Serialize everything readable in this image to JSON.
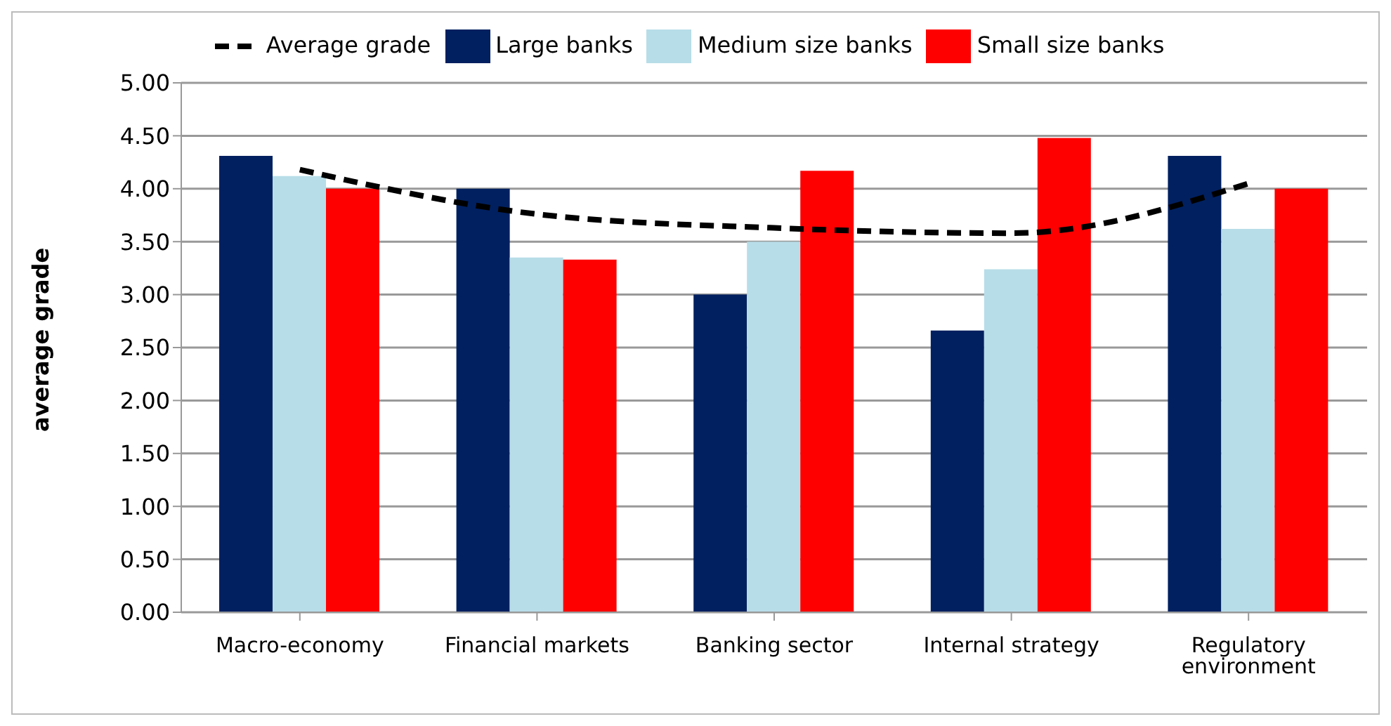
{
  "chart_data": {
    "type": "bar",
    "categories": [
      "Macro-economy",
      "Financial markets",
      "Banking sector",
      "Internal strategy",
      "Regulatory environment"
    ],
    "series": [
      {
        "name": "Large banks",
        "color": "#002060",
        "values": [
          4.31,
          4.0,
          3.0,
          2.66,
          4.31
        ]
      },
      {
        "name": "Medium size banks",
        "color": "#b7dde8",
        "values": [
          4.12,
          3.35,
          3.5,
          3.24,
          3.62
        ]
      },
      {
        "name": "Small size banks",
        "color": "#ff0000",
        "values": [
          4.0,
          3.33,
          4.17,
          4.48,
          4.0
        ]
      },
      {
        "name": "Average grade",
        "type": "line",
        "color": "#000000",
        "line_style": "dashed",
        "values": [
          4.18,
          3.76,
          3.63,
          3.58,
          4.05
        ]
      }
    ],
    "ylabel": "average grade",
    "ylim": [
      0,
      5
    ],
    "yticks": [
      {
        "value": 0,
        "label": "0.00"
      },
      {
        "value": 0.5,
        "label": "0.50"
      },
      {
        "value": 1,
        "label": "1.00"
      },
      {
        "value": 1.5,
        "label": "1.50"
      },
      {
        "value": 2,
        "label": "2.00"
      },
      {
        "value": 2.5,
        "label": "2.50"
      },
      {
        "value": 3,
        "label": "3.00"
      },
      {
        "value": 3.5,
        "label": "3.50"
      },
      {
        "value": 4,
        "label": "4.00"
      },
      {
        "value": 4.5,
        "label": "4.50"
      },
      {
        "value": 5,
        "label": "5.00"
      }
    ],
    "grid": "y",
    "legend": "top",
    "marker": "none"
  }
}
